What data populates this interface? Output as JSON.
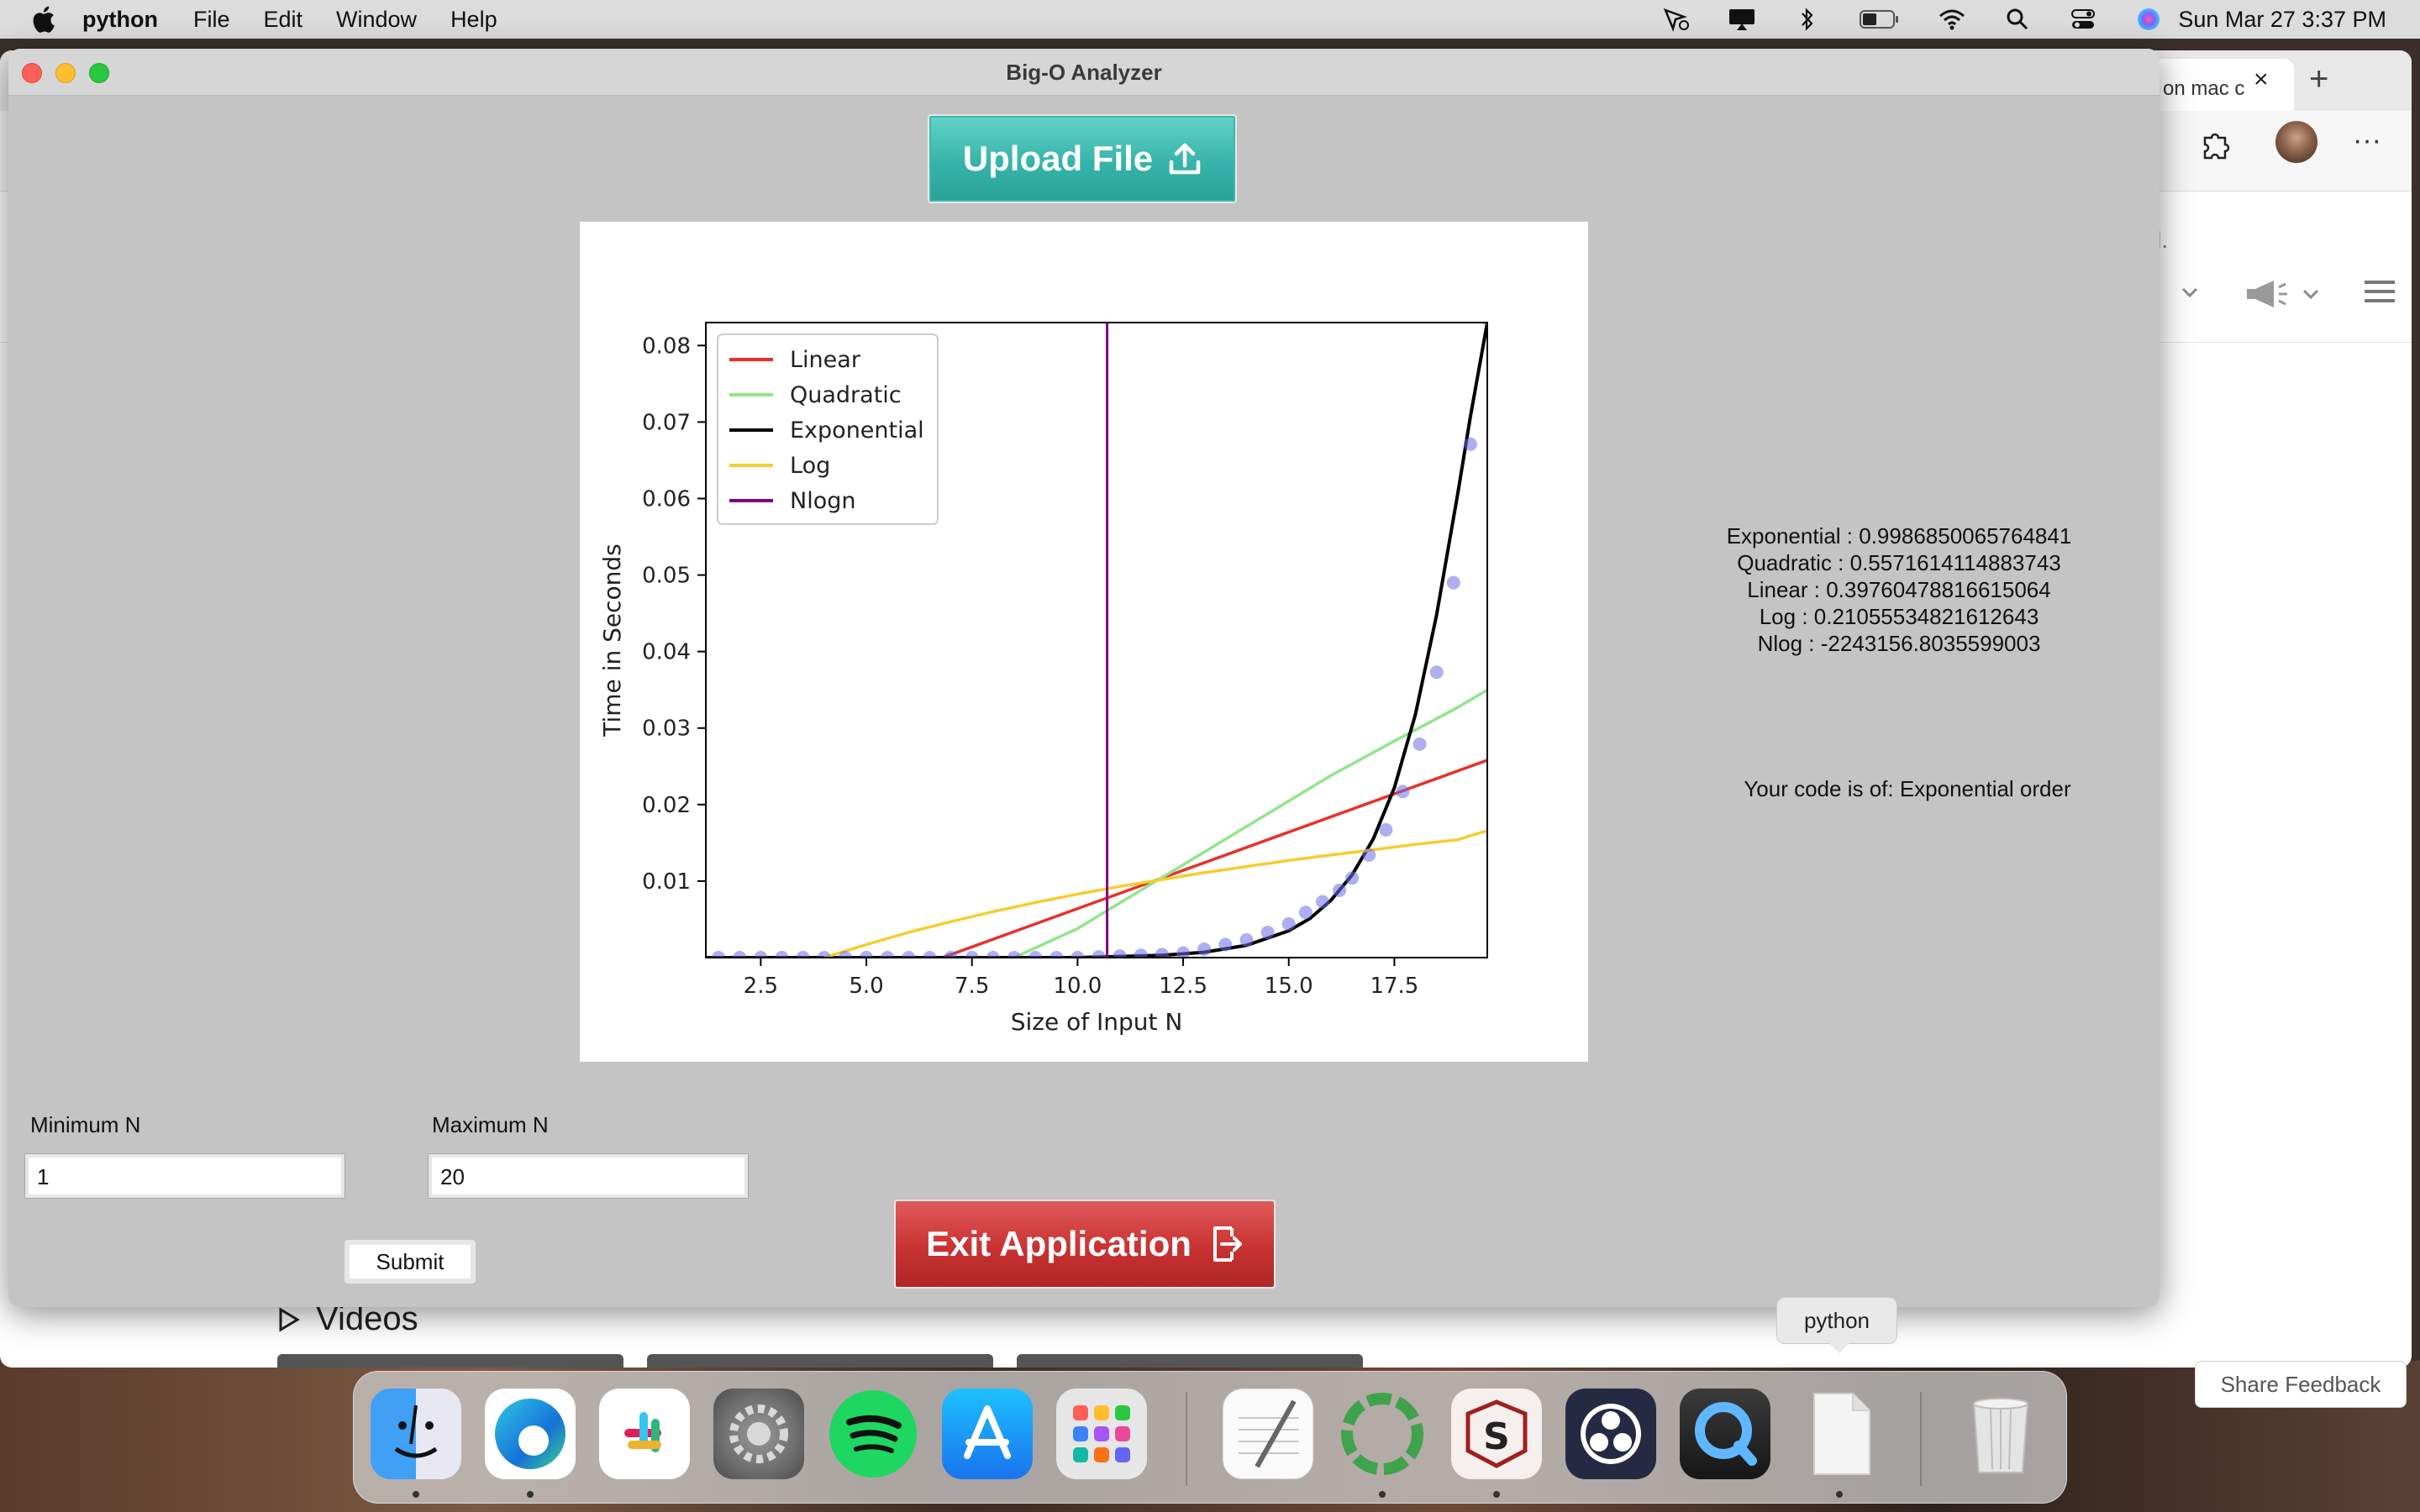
{
  "menubar": {
    "app_name": "python",
    "items": [
      "File",
      "Edit",
      "Window",
      "Help"
    ],
    "clock": "Sun Mar 27  3:37 PM"
  },
  "browser": {
    "tab_title": "on mac c",
    "truncated_label": "l.",
    "videos_label": "Videos",
    "share_feedback": "Share Feedback"
  },
  "window": {
    "title": "Big-O Analyzer",
    "upload_label": "Upload File",
    "exit_label": "Exit Application",
    "results": [
      "Exponential : 0.9986850065764841",
      "Quadratic : 0.5571614114883743",
      "Linear : 0.39760478816615064",
      "Log : 0.21055534821612643",
      "Nlog : -2243156.8035599003"
    ],
    "verdict": "Your code is of: Exponential order",
    "min_label": "Minimum N",
    "min_value": "1",
    "max_label": "Maximum N",
    "max_value": "20",
    "submit_label": "Submit"
  },
  "tooltip": "python",
  "colors": {
    "upload": "#36b4a9",
    "exit": "#c93232",
    "linear": "#e8302a",
    "quadratic": "#90e68a",
    "exponential": "#000000",
    "log": "#f7cc2f",
    "nlogn": "#800080",
    "points": "#6b6be6"
  },
  "chart_data": {
    "type": "line",
    "title": "",
    "xlabel": "Size of Input N",
    "ylabel": "Time in Seconds",
    "xlim": [
      1.2,
      19.7
    ],
    "ylim": [
      0.0,
      0.083
    ],
    "xticks": [
      2.5,
      5.0,
      7.5,
      10.0,
      12.5,
      15.0,
      17.5
    ],
    "yticks": [
      0.01,
      0.02,
      0.03,
      0.04,
      0.05,
      0.06,
      0.07,
      0.08
    ],
    "legend_position": "top-left",
    "series": [
      {
        "name": "Linear",
        "color": "#e8302a",
        "x": [
          6.8,
          19.7
        ],
        "y": [
          0.0,
          0.0258
        ]
      },
      {
        "name": "Quadratic",
        "color": "#90e68a",
        "x": [
          8.5,
          10.0,
          11.5,
          13.0,
          14.5,
          16.0,
          17.5,
          19.0,
          19.7
        ],
        "y": [
          0.0,
          0.0038,
          0.0088,
          0.0138,
          0.0188,
          0.0238,
          0.0283,
          0.0327,
          0.035
        ]
      },
      {
        "name": "Exponential",
        "color": "#000000",
        "x": [
          1.2,
          10.0,
          12.0,
          13.0,
          14.0,
          15.0,
          15.5,
          16.0,
          16.5,
          17.0,
          17.5,
          18.0,
          18.5,
          19.0,
          19.3,
          19.7
        ],
        "y": [
          0.0,
          0.0,
          0.0003,
          0.0007,
          0.0016,
          0.0035,
          0.0051,
          0.0075,
          0.0108,
          0.0155,
          0.0222,
          0.0318,
          0.0448,
          0.0606,
          0.0707,
          0.083
        ]
      },
      {
        "name": "Log",
        "color": "#f7cc2f",
        "x": [
          4.0,
          5.0,
          6.0,
          7.0,
          8.0,
          9.0,
          10.0,
          11.0,
          12.0,
          13.0,
          14.0,
          15.0,
          16.0,
          17.0,
          18.0,
          19.0,
          19.7
        ],
        "y": [
          0.0,
          0.0017,
          0.0033,
          0.0047,
          0.006,
          0.0072,
          0.0083,
          0.0093,
          0.0102,
          0.0111,
          0.0119,
          0.0127,
          0.0134,
          0.0141,
          0.0148,
          0.0154,
          0.0166
        ]
      },
      {
        "name": "Nlogn",
        "color": "#800080",
        "vertical_x": 10.7
      }
    ],
    "points": {
      "color": "#6b6be6",
      "x": [
        1.5,
        2.0,
        2.5,
        3.0,
        3.5,
        4.0,
        4.5,
        5.0,
        5.5,
        6.0,
        6.5,
        7.0,
        7.5,
        8.0,
        8.5,
        9.0,
        9.5,
        10.0,
        10.5,
        11.0,
        11.5,
        12.0,
        12.5,
        13.0,
        13.5,
        14.0,
        14.5,
        15.0,
        15.4,
        15.8,
        16.2,
        16.5,
        16.9,
        17.3,
        17.7,
        18.1,
        18.5,
        18.9,
        19.3,
        19.7
      ],
      "y": [
        0.0,
        0.0,
        0.0,
        0.0,
        0.0,
        0.0,
        0.0,
        0.0,
        0.0,
        0.0,
        0.0,
        0.0,
        0.0,
        0.0,
        0.0,
        0.0,
        0.0,
        0.0,
        0.0001,
        0.0002,
        0.0003,
        0.0004,
        0.0006,
        0.0011,
        0.0017,
        0.0023,
        0.0033,
        0.0044,
        0.0059,
        0.0073,
        0.0088,
        0.0104,
        0.0134,
        0.0167,
        0.0217,
        0.0279,
        0.0373,
        0.049,
        0.0671,
        0.0835
      ]
    }
  }
}
